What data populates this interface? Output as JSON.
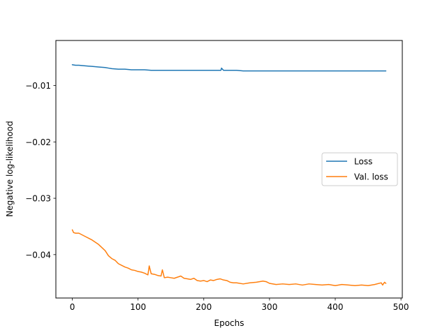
{
  "chart_data": {
    "type": "line",
    "title": "",
    "xlabel": "Epochs",
    "ylabel": "Negative log-likelihood",
    "xlim": [
      -25,
      502
    ],
    "ylim": [
      -0.0477,
      -0.002
    ],
    "xticks": [
      0,
      100,
      200,
      300,
      400,
      500
    ],
    "xtick_labels": [
      "0",
      "100",
      "200",
      "300",
      "400",
      "500"
    ],
    "yticks": [
      -0.01,
      -0.02,
      -0.03,
      -0.04
    ],
    "ytick_labels": [
      "−0.01",
      "−0.02",
      "−0.03",
      "−0.04"
    ],
    "grid": false,
    "legend": {
      "position": "center-right"
    },
    "series": [
      {
        "name": "Loss",
        "color": "#1f77b4",
        "x": [
          0,
          5,
          10,
          20,
          30,
          40,
          50,
          55,
          60,
          70,
          80,
          90,
          100,
          110,
          120,
          130,
          140,
          150,
          160,
          170,
          180,
          190,
          200,
          210,
          220,
          226,
          227,
          230,
          240,
          250,
          260,
          270,
          280,
          290,
          300,
          310,
          320,
          330,
          340,
          350,
          360,
          370,
          380,
          390,
          400,
          410,
          420,
          430,
          440,
          450,
          460,
          470,
          477
        ],
        "y": [
          -0.0063,
          -0.0064,
          -0.0064,
          -0.0065,
          -0.0066,
          -0.0067,
          -0.0068,
          -0.0069,
          -0.007,
          -0.0071,
          -0.0071,
          -0.0072,
          -0.0072,
          -0.0072,
          -0.0073,
          -0.0073,
          -0.0073,
          -0.0073,
          -0.0073,
          -0.0073,
          -0.0073,
          -0.0073,
          -0.0073,
          -0.0073,
          -0.0073,
          -0.0073,
          -0.0069,
          -0.0073,
          -0.0073,
          -0.0073,
          -0.0074,
          -0.0074,
          -0.0074,
          -0.0074,
          -0.0074,
          -0.0074,
          -0.0074,
          -0.0074,
          -0.0074,
          -0.0074,
          -0.0074,
          -0.0074,
          -0.0074,
          -0.0074,
          -0.0074,
          -0.0074,
          -0.0074,
          -0.0074,
          -0.0074,
          -0.0074,
          -0.0074,
          -0.0074,
          -0.0074
        ]
      },
      {
        "name": "Val. loss",
        "color": "#ff7f0e",
        "x": [
          0,
          2,
          5,
          10,
          20,
          30,
          40,
          50,
          55,
          60,
          65,
          70,
          75,
          80,
          85,
          90,
          95,
          100,
          105,
          110,
          115,
          117,
          120,
          125,
          130,
          135,
          137,
          140,
          145,
          150,
          155,
          160,
          165,
          170,
          175,
          180,
          185,
          190,
          195,
          200,
          205,
          210,
          215,
          220,
          225,
          230,
          235,
          240,
          245,
          250,
          260,
          270,
          280,
          290,
          295,
          300,
          310,
          320,
          330,
          340,
          350,
          360,
          370,
          380,
          390,
          400,
          410,
          420,
          430,
          440,
          450,
          460,
          470,
          472,
          475,
          477
        ],
        "y": [
          -0.0356,
          -0.0361,
          -0.0362,
          -0.0362,
          -0.0368,
          -0.0374,
          -0.0382,
          -0.0393,
          -0.0402,
          -0.0407,
          -0.041,
          -0.0416,
          -0.0419,
          -0.0422,
          -0.0424,
          -0.0427,
          -0.0428,
          -0.043,
          -0.0431,
          -0.0433,
          -0.0436,
          -0.042,
          -0.0434,
          -0.0435,
          -0.0437,
          -0.0438,
          -0.0427,
          -0.0441,
          -0.044,
          -0.0441,
          -0.0442,
          -0.044,
          -0.0438,
          -0.0442,
          -0.0443,
          -0.0444,
          -0.0442,
          -0.0446,
          -0.0447,
          -0.0446,
          -0.0448,
          -0.0445,
          -0.0446,
          -0.0444,
          -0.0443,
          -0.0445,
          -0.0446,
          -0.0449,
          -0.045,
          -0.045,
          -0.0452,
          -0.045,
          -0.0449,
          -0.0447,
          -0.0448,
          -0.0451,
          -0.0453,
          -0.0452,
          -0.0453,
          -0.0452,
          -0.0454,
          -0.0452,
          -0.0453,
          -0.0454,
          -0.0453,
          -0.0455,
          -0.0453,
          -0.0454,
          -0.0455,
          -0.0454,
          -0.0455,
          -0.0453,
          -0.045,
          -0.0454,
          -0.0449,
          -0.0451
        ]
      }
    ]
  }
}
